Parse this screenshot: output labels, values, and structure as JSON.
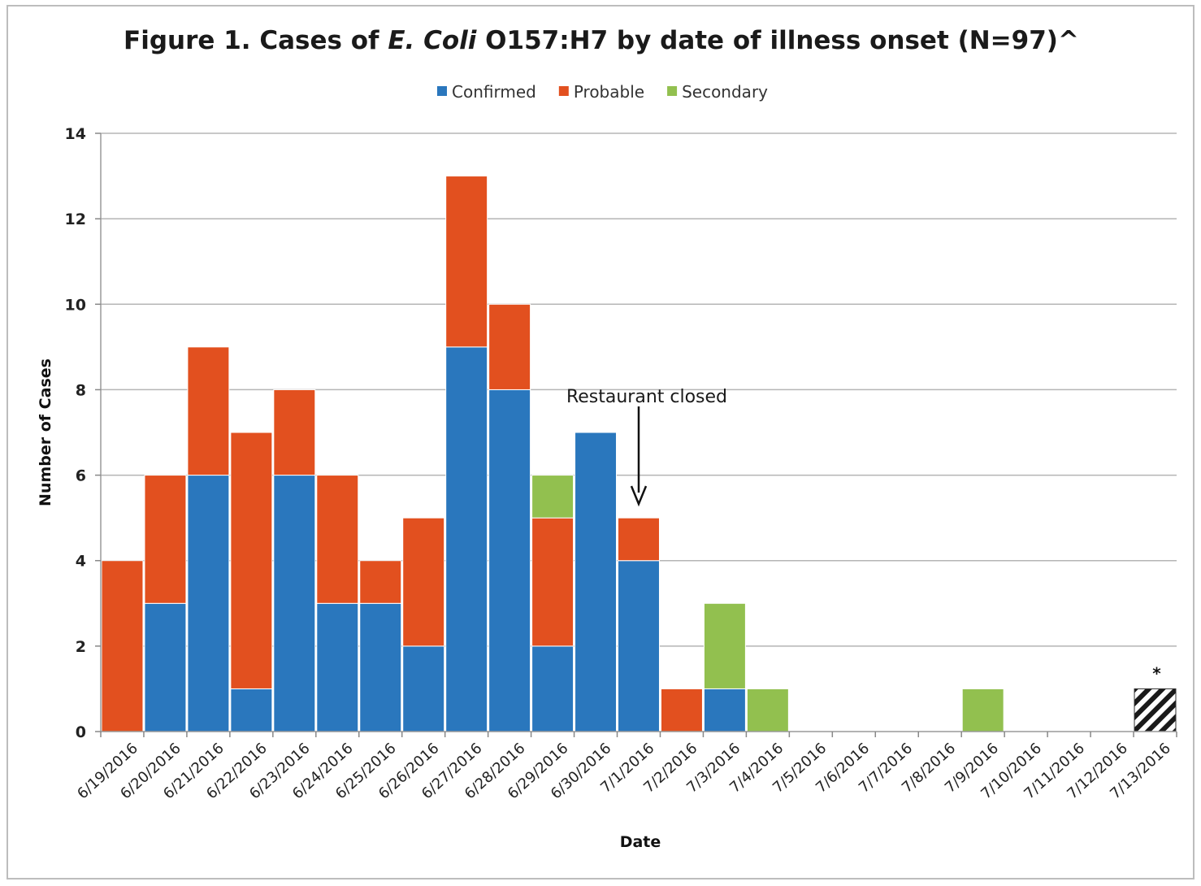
{
  "chart_data": {
    "type": "bar",
    "stacked": true,
    "title": {
      "prefix": "Figure 1. Cases of ",
      "italic": "E. Coli",
      "suffix": " O157:H7 by date of illness onset (N=97)^"
    },
    "xlabel": "Date",
    "ylabel": "Number of Cases",
    "ylim": [
      0,
      14
    ],
    "yticks": [
      0,
      2,
      4,
      6,
      8,
      10,
      12,
      14
    ],
    "grid": true,
    "legend_position": "top",
    "categories": [
      "6/19/2016",
      "6/20/2016",
      "6/21/2016",
      "6/22/2016",
      "6/23/2016",
      "6/24/2016",
      "6/25/2016",
      "6/26/2016",
      "6/27/2016",
      "6/28/2016",
      "6/29/2016",
      "6/30/2016",
      "7/1/2016",
      "7/2/2016",
      "7/3/2016",
      "7/4/2016",
      "7/5/2016",
      "7/6/2016",
      "7/7/2016",
      "7/8/2016",
      "7/9/2016",
      "7/10/2016",
      "7/11/2016",
      "7/12/2016",
      "7/13/2016"
    ],
    "series": [
      {
        "name": "Confirmed",
        "color": "#2a77bd",
        "values": [
          0,
          3,
          6,
          1,
          6,
          3,
          3,
          2,
          9,
          8,
          2,
          7,
          4,
          0,
          1,
          0,
          0,
          0,
          0,
          0,
          0,
          0,
          0,
          0,
          0
        ]
      },
      {
        "name": "Probable",
        "color": "#e2501f",
        "values": [
          4,
          3,
          3,
          6,
          2,
          3,
          1,
          3,
          4,
          2,
          3,
          0,
          1,
          1,
          0,
          0,
          0,
          0,
          0,
          0,
          0,
          0,
          0,
          0,
          0
        ]
      },
      {
        "name": "Secondary",
        "color": "#92c04f",
        "values": [
          0,
          0,
          0,
          0,
          0,
          0,
          0,
          0,
          0,
          0,
          1,
          0,
          0,
          0,
          2,
          1,
          0,
          0,
          0,
          0,
          1,
          0,
          0,
          0,
          0
        ]
      }
    ],
    "hatched_bar": {
      "category": "7/13/2016",
      "value": 1,
      "label": "*"
    },
    "annotation": {
      "text": "Restaurant closed",
      "category": "7/1/2016"
    }
  }
}
